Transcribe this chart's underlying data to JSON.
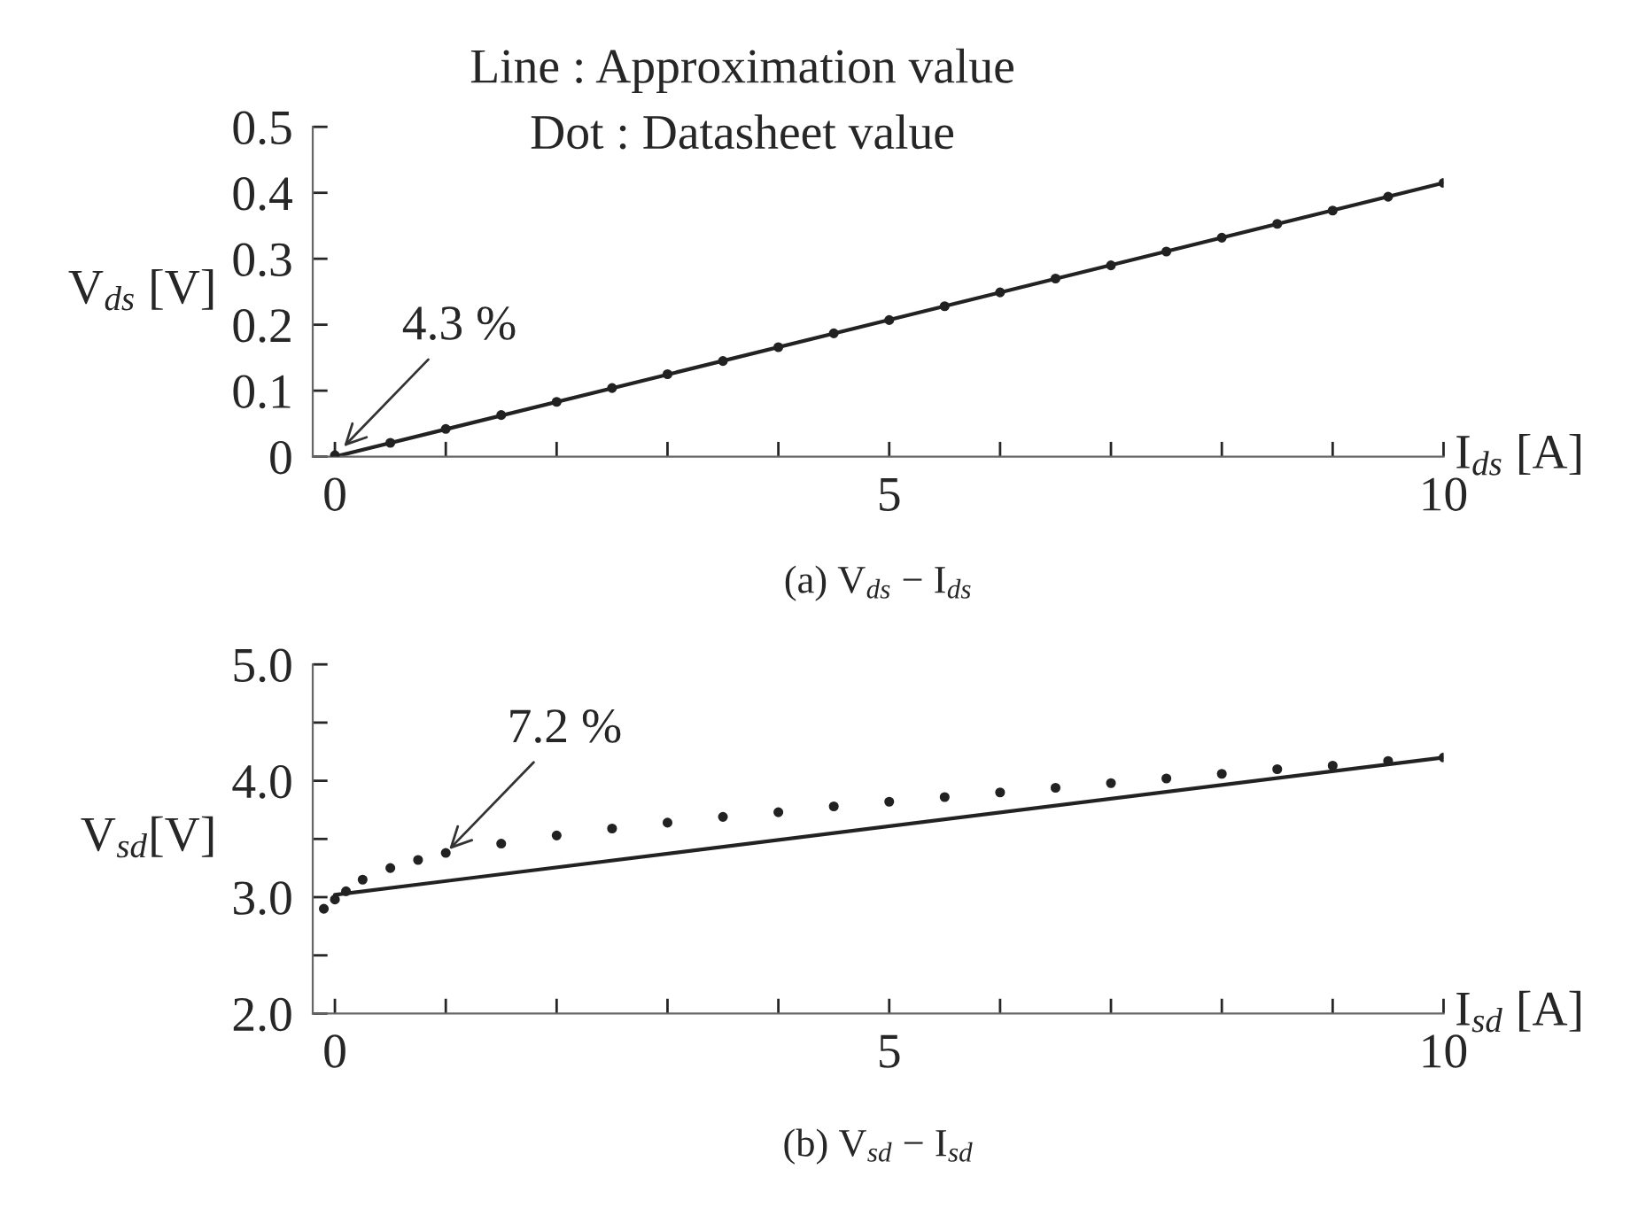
{
  "chart_data": [
    {
      "type": "line",
      "title": "(a) V$_{ds}$ − I$_{ds}$",
      "xlabel": "I$_{ds}$ [A]",
      "ylabel": "V$_{ds}$ [V]",
      "annotations": [
        "Line : Approximation value",
        "Dot : Datasheet value",
        {
          "text": "4.3 %",
          "x": 0.05,
          "y": 0.01
        }
      ],
      "xlim": [
        -0.2,
        10
      ],
      "ylim": [
        0,
        0.5
      ],
      "xticks": [
        0,
        {
          "value": 1,
          "label": null
        },
        {
          "value": 2,
          "label": null
        },
        {
          "value": 3,
          "label": null
        },
        {
          "value": 4,
          "label": null
        },
        5,
        {
          "value": 6,
          "label": null
        },
        {
          "value": 7,
          "label": null
        },
        {
          "value": 8,
          "label": null
        },
        {
          "value": 9,
          "label": null
        },
        10
      ],
      "yticks": [
        {
          "value": 0,
          "label": "0"
        },
        0.1,
        0.2,
        0.3,
        0.4,
        0.5
      ],
      "series": [
        {
          "color": "#222222",
          "x": [
            0,
            10
          ],
          "values": [
            0,
            0.415
          ]
        },
        {
          "type": "scatter",
          "marker": "circle",
          "color": "#222222",
          "x": [
            0,
            0.5,
            1,
            1.5,
            2,
            2.5,
            3,
            3.5,
            4,
            4.5,
            5,
            5.5,
            6,
            6.5,
            7,
            7.5,
            8,
            8.5,
            9,
            9.5,
            10
          ],
          "values": [
            0.002,
            0.021,
            0.042,
            0.063,
            0.083,
            0.104,
            0.125,
            0.145,
            0.166,
            0.187,
            0.207,
            0.228,
            0.249,
            0.27,
            0.29,
            0.311,
            0.332,
            0.353,
            0.373,
            0.394,
            0.415
          ]
        }
      ]
    },
    {
      "type": "line",
      "title": "(b) V$_{sd}$ − I$_{sd}$",
      "xlabel": "I$_{sd}$ [A]",
      "ylabel": "V$_{sd}$[V]",
      "annotations": [
        {
          "text": "7.2 %",
          "x": 1.0,
          "y": 3.38
        }
      ],
      "xlim": [
        -0.2,
        10
      ],
      "ylim": [
        2.0,
        5.0
      ],
      "xticks": [
        0,
        {
          "value": 1,
          "label": null
        },
        {
          "value": 2,
          "label": null
        },
        {
          "value": 3,
          "label": null
        },
        {
          "value": 4,
          "label": null
        },
        5,
        {
          "value": 6,
          "label": null
        },
        {
          "value": 7,
          "label": null
        },
        {
          "value": 8,
          "label": null
        },
        {
          "value": 9,
          "label": null
        },
        10
      ],
      "yticks": [
        {
          "value": 2.0,
          "label": "2.0"
        },
        {
          "value": 2.5,
          "label": null
        },
        {
          "value": 3.0,
          "label": "3.0"
        },
        {
          "value": 3.5,
          "label": null
        },
        {
          "value": 4.0,
          "label": "4.0"
        },
        {
          "value": 4.5,
          "label": null
        },
        {
          "value": 5.0,
          "label": "5.0"
        }
      ],
      "series": [
        {
          "color": "#222222",
          "x": [
            0,
            10
          ],
          "values": [
            3.02,
            4.2
          ]
        },
        {
          "type": "scatter",
          "marker": "circle",
          "color": "#222222",
          "x": [
            -0.1,
            0,
            0.1,
            0.25,
            0.5,
            0.75,
            1,
            1.5,
            2,
            2.5,
            3,
            3.5,
            4,
            4.5,
            5,
            5.5,
            6,
            6.5,
            7,
            7.5,
            8,
            8.5,
            9,
            9.5,
            10
          ],
          "values": [
            2.9,
            2.98,
            3.05,
            3.15,
            3.25,
            3.32,
            3.38,
            3.46,
            3.53,
            3.59,
            3.64,
            3.69,
            3.73,
            3.78,
            3.82,
            3.86,
            3.9,
            3.94,
            3.98,
            4.02,
            4.06,
            4.1,
            4.13,
            4.17,
            4.2
          ]
        }
      ]
    }
  ]
}
